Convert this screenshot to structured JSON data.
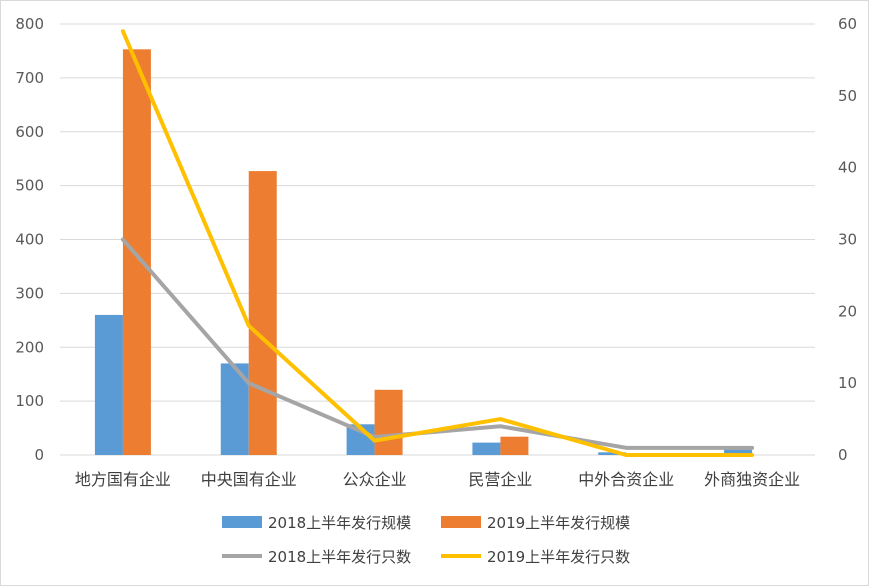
{
  "chart_data": {
    "type": "bar",
    "categories": [
      "地方国有企业",
      "中央国有企业",
      "公众企业",
      "民营企业",
      "中外合资企业",
      "外商独资企业"
    ],
    "series": [
      {
        "name": "2018上半年发行规模",
        "type": "bar",
        "axis": "left",
        "color": "#5b9bd5",
        "values": [
          260,
          170,
          57,
          23,
          5,
          10
        ]
      },
      {
        "name": "2019上半年发行规模",
        "type": "bar",
        "axis": "left",
        "color": "#ed7d31",
        "values": [
          753,
          527,
          121,
          34,
          0,
          0
        ]
      },
      {
        "name": "2018上半年发行只数",
        "type": "line",
        "axis": "right",
        "color": "#a5a5a5",
        "values": [
          30,
          10,
          2.5,
          4,
          1,
          1
        ]
      },
      {
        "name": "2019上半年发行只数",
        "type": "line",
        "axis": "right",
        "color": "#ffc000",
        "values": [
          59,
          18,
          2,
          5,
          0,
          0
        ]
      }
    ],
    "y_left": {
      "min": 0,
      "max": 800,
      "ticks": [
        "0",
        "100",
        "200",
        "300",
        "400",
        "500",
        "600",
        "700",
        "800"
      ]
    },
    "y_right": {
      "min": 0,
      "max": 60,
      "ticks": [
        "0",
        "10",
        "20",
        "30",
        "40",
        "50",
        "60"
      ]
    },
    "grid": true,
    "legend_position": "bottom"
  }
}
